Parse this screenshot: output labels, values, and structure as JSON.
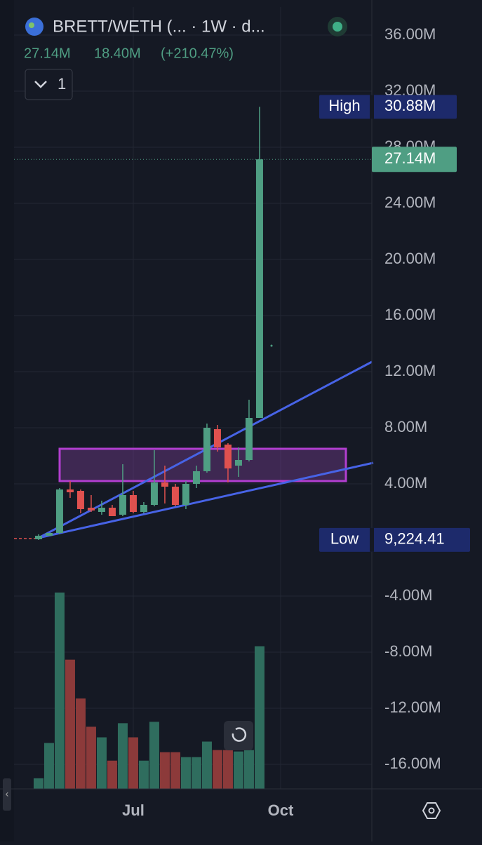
{
  "header": {
    "symbol": "BRETT/WETH (... · 1W · d...",
    "last": "27.14M",
    "change": "18.40M",
    "change_pct": "(+210.47%)",
    "indicator_count": "1"
  },
  "chart_data": {
    "type": "candlestick",
    "x": [
      0,
      1,
      2,
      3,
      4,
      5,
      6,
      7,
      8,
      9,
      10,
      11,
      12,
      13,
      14,
      15,
      16,
      17,
      18,
      19,
      20,
      21
    ],
    "open": [
      0.05,
      0.3,
      0.5,
      3.6,
      3.5,
      2.3,
      2.0,
      2.3,
      1.8,
      3.2,
      2.0,
      2.5,
      4.1,
      3.8,
      2.5,
      4.0,
      4.9,
      7.9,
      6.8,
      5.3,
      5.7,
      8.7
    ],
    "high": [
      0.4,
      0.5,
      3.7,
      4.2,
      3.6,
      3.2,
      2.8,
      2.5,
      5.4,
      3.5,
      2.7,
      6.4,
      5.3,
      4.0,
      4.2,
      5.3,
      8.3,
      8.2,
      6.9,
      6.6,
      10.0,
      30.88
    ],
    "low": [
      0,
      0.3,
      0.4,
      3.0,
      1.9,
      2.0,
      1.8,
      1.7,
      1.7,
      1.9,
      1.9,
      2.4,
      2.6,
      2.4,
      2.2,
      3.7,
      4.8,
      6.3,
      4.1,
      4.5,
      5.6,
      8.7
    ],
    "close": [
      0.3,
      0.5,
      3.6,
      3.4,
      2.2,
      2.1,
      2.3,
      1.7,
      3.2,
      2.0,
      2.5,
      4.1,
      3.8,
      2.5,
      4.0,
      4.9,
      8.0,
      6.6,
      5.1,
      5.7,
      8.7,
      27.14
    ],
    "volume": [
      15,
      65,
      278,
      183,
      128,
      88,
      73,
      40,
      93,
      73,
      40,
      95,
      52,
      52,
      45,
      45,
      67,
      55,
      55,
      53,
      55,
      202
    ],
    "up_color": "#4f9e83",
    "down_color": "#e0514f",
    "up_volume_color": "#2f6d5e",
    "down_volume_color": "#8c3a3a",
    "xlim": [
      -2.33,
      31.67
    ],
    "xticks": [
      {
        "value": 9,
        "label": "Jul"
      },
      {
        "value": 23,
        "label": "Oct"
      }
    ],
    "ylim": [
      -17.75,
      38
    ],
    "yticks": [
      {
        "value": 36,
        "label": "36.00M"
      },
      {
        "value": 32,
        "label": "32.00M"
      },
      {
        "value": 28,
        "label": "28.00M"
      },
      {
        "value": 24,
        "label": "24.00M"
      },
      {
        "value": 20,
        "label": "20.00M"
      },
      {
        "value": 16,
        "label": "16.00M"
      },
      {
        "value": 12,
        "label": "12.00M"
      },
      {
        "value": 8,
        "label": "8.00M"
      },
      {
        "value": 4,
        "label": "4.00M"
      },
      {
        "value": -4,
        "label": "-4.00M"
      },
      {
        "value": -8,
        "label": "-8.00M"
      },
      {
        "value": -12,
        "label": "-12.00M"
      },
      {
        "value": -16,
        "label": "-16.00M"
      }
    ],
    "grid": true,
    "high_marker": {
      "name": "High",
      "value": 30.88,
      "label": "30.88M"
    },
    "low_marker": {
      "name": "Low",
      "value": 0.00922441,
      "label": "9,224.41"
    },
    "last_price": {
      "value": 27.14,
      "label": "27.14M",
      "color": "#4f9e83"
    }
  }
}
